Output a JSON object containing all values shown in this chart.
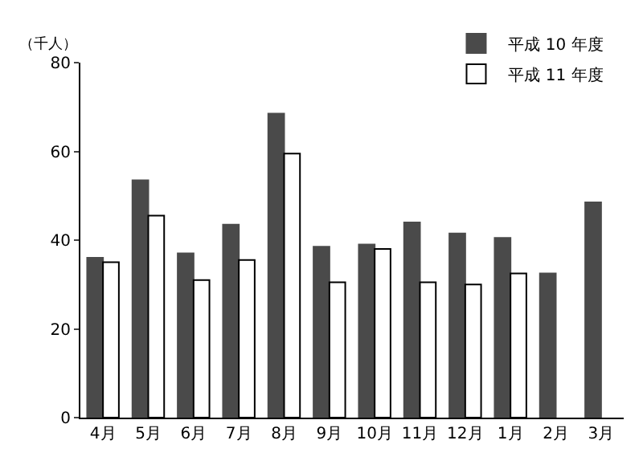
{
  "chart_data": {
    "type": "bar",
    "ylabel": "（千人）",
    "categories": [
      "4月",
      "5月",
      "6月",
      "7月",
      "8月",
      "9月",
      "10月",
      "11月",
      "12月",
      "1月",
      "2月",
      "3月"
    ],
    "series": [
      {
        "name": "平成 10 年度",
        "color": "#4a4a4a",
        "values": [
          36,
          53.5,
          37,
          43.5,
          68.5,
          38.5,
          39,
          44,
          41.5,
          40.5,
          32.5,
          48.5
        ]
      },
      {
        "name": "平成 11 年度",
        "color": "#ffffff",
        "values": [
          35,
          45.5,
          31,
          35.5,
          59.5,
          30.5,
          38,
          30.5,
          30,
          32.5,
          null,
          null
        ]
      }
    ],
    "ylim": [
      0,
      80
    ],
    "yticks": [
      0,
      20,
      40,
      60,
      80
    ],
    "grid": false,
    "legend": "top right"
  }
}
